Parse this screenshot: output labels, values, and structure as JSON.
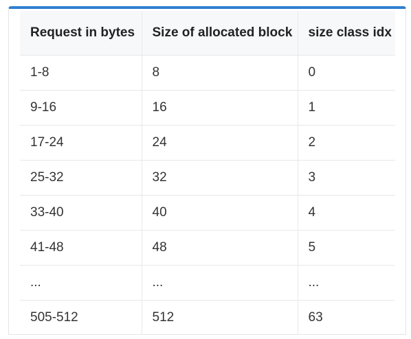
{
  "table": {
    "headers": [
      "Request in bytes",
      "Size of allocated block",
      "size class idx"
    ],
    "rows": [
      [
        "1-8",
        "8",
        "0"
      ],
      [
        "9-16",
        "16",
        "1"
      ],
      [
        "17-24",
        "24",
        "2"
      ],
      [
        "25-32",
        "32",
        "3"
      ],
      [
        "33-40",
        "40",
        "4"
      ],
      [
        "41-48",
        "48",
        "5"
      ],
      [
        "...",
        "...",
        "..."
      ],
      [
        "505-512",
        "512",
        "63"
      ]
    ]
  },
  "colors": {
    "accent_top_border": "#2f7fd0",
    "header_background": "#f6f8fa",
    "border": "#e6e8eb",
    "text": "#333333"
  }
}
